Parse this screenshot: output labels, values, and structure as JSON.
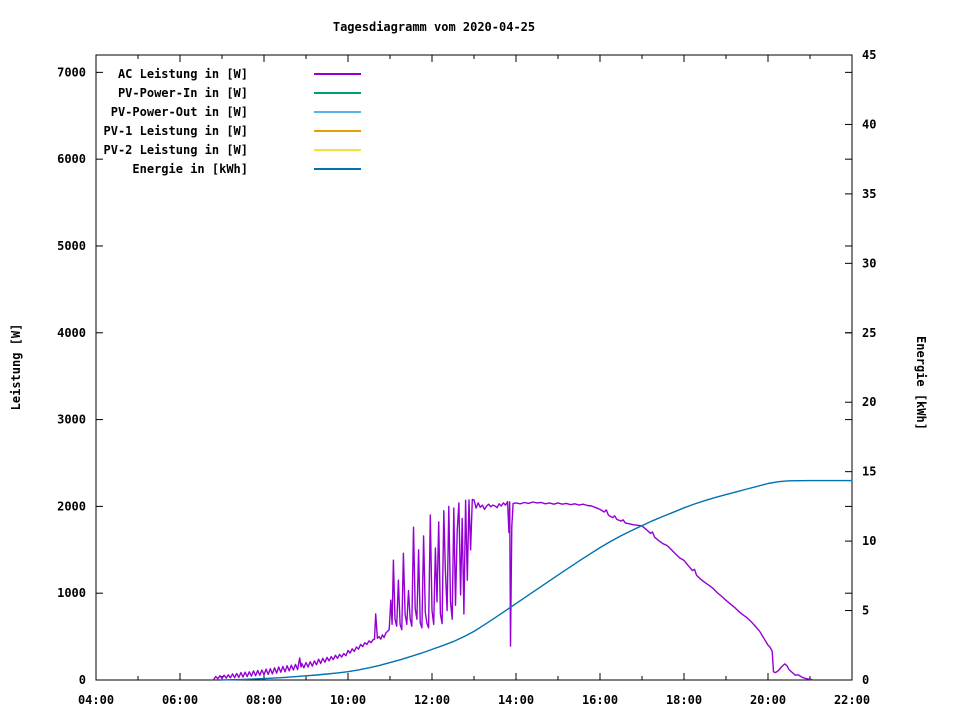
{
  "chart_data": {
    "type": "line",
    "title": "Tagesdiagramm vom 2020-04-25",
    "ylabel_left": "Leistung [W]",
    "ylabel_right": "Energie [kWh]",
    "x_range": [
      4,
      22
    ],
    "x_tick_labels": [
      "04:00",
      "06:00",
      "08:00",
      "10:00",
      "12:00",
      "14:00",
      "16:00",
      "18:00",
      "20:00",
      "22:00"
    ],
    "x_major_step_hours": 2,
    "x_minor_step_hours": 1,
    "y_left": {
      "range": [
        0,
        7200
      ],
      "ticks": [
        0,
        1000,
        2000,
        3000,
        4000,
        5000,
        6000,
        7000
      ]
    },
    "y_right": {
      "range": [
        0,
        45
      ],
      "ticks": [
        0,
        5,
        10,
        15,
        20,
        25,
        30,
        35,
        40,
        45
      ]
    },
    "grid": false,
    "legend_position": "top-left-inside",
    "background_color": "#ffffff",
    "border_color": "#000000",
    "series": [
      {
        "name": "AC Leistung in [W]",
        "color": "#9400d3",
        "axis": "left",
        "points": [
          [
            6.8,
            3
          ],
          [
            6.85,
            40
          ],
          [
            6.9,
            15
          ],
          [
            6.95,
            50
          ],
          [
            7.0,
            20
          ],
          [
            7.05,
            55
          ],
          [
            7.1,
            22
          ],
          [
            7.15,
            60
          ],
          [
            7.2,
            25
          ],
          [
            7.25,
            70
          ],
          [
            7.3,
            28
          ],
          [
            7.35,
            75
          ],
          [
            7.4,
            30
          ],
          [
            7.45,
            85
          ],
          [
            7.5,
            35
          ],
          [
            7.55,
            90
          ],
          [
            7.6,
            40
          ],
          [
            7.65,
            95
          ],
          [
            7.7,
            45
          ],
          [
            7.75,
            105
          ],
          [
            7.8,
            50
          ],
          [
            7.85,
            110
          ],
          [
            7.9,
            55
          ],
          [
            7.95,
            115
          ],
          [
            8.0,
            60
          ],
          [
            8.05,
            125
          ],
          [
            8.1,
            65
          ],
          [
            8.15,
            130
          ],
          [
            8.2,
            70
          ],
          [
            8.25,
            140
          ],
          [
            8.3,
            80
          ],
          [
            8.35,
            150
          ],
          [
            8.4,
            90
          ],
          [
            8.45,
            155
          ],
          [
            8.5,
            95
          ],
          [
            8.55,
            165
          ],
          [
            8.6,
            105
          ],
          [
            8.65,
            170
          ],
          [
            8.7,
            115
          ],
          [
            8.75,
            180
          ],
          [
            8.8,
            120
          ],
          [
            8.85,
            255
          ],
          [
            8.88,
            150
          ],
          [
            8.9,
            190
          ],
          [
            8.95,
            140
          ],
          [
            9.0,
            200
          ],
          [
            9.05,
            150
          ],
          [
            9.1,
            210
          ],
          [
            9.15,
            160
          ],
          [
            9.2,
            220
          ],
          [
            9.25,
            175
          ],
          [
            9.3,
            240
          ],
          [
            9.35,
            190
          ],
          [
            9.4,
            250
          ],
          [
            9.45,
            205
          ],
          [
            9.5,
            260
          ],
          [
            9.55,
            220
          ],
          [
            9.6,
            270
          ],
          [
            9.65,
            235
          ],
          [
            9.7,
            285
          ],
          [
            9.75,
            250
          ],
          [
            9.8,
            295
          ],
          [
            9.85,
            265
          ],
          [
            9.9,
            305
          ],
          [
            9.95,
            280
          ],
          [
            10.0,
            340
          ],
          [
            10.05,
            310
          ],
          [
            10.1,
            360
          ],
          [
            10.15,
            330
          ],
          [
            10.2,
            380
          ],
          [
            10.25,
            355
          ],
          [
            10.3,
            410
          ],
          [
            10.35,
            385
          ],
          [
            10.4,
            430
          ],
          [
            10.45,
            410
          ],
          [
            10.5,
            450
          ],
          [
            10.55,
            430
          ],
          [
            10.6,
            465
          ],
          [
            10.63,
            470
          ],
          [
            10.66,
            760
          ],
          [
            10.7,
            480
          ],
          [
            10.74,
            500
          ],
          [
            10.78,
            470
          ],
          [
            10.82,
            520
          ],
          [
            10.86,
            490
          ],
          [
            10.9,
            540
          ],
          [
            10.94,
            560
          ],
          [
            10.98,
            580
          ],
          [
            11.02,
            920
          ],
          [
            11.05,
            640
          ],
          [
            11.08,
            1380
          ],
          [
            11.12,
            700
          ],
          [
            11.16,
            620
          ],
          [
            11.2,
            1150
          ],
          [
            11.24,
            640
          ],
          [
            11.28,
            580
          ],
          [
            11.32,
            1460
          ],
          [
            11.36,
            760
          ],
          [
            11.4,
            640
          ],
          [
            11.44,
            1030
          ],
          [
            11.48,
            700
          ],
          [
            11.52,
            620
          ],
          [
            11.56,
            1760
          ],
          [
            11.6,
            820
          ],
          [
            11.64,
            700
          ],
          [
            11.68,
            1500
          ],
          [
            11.72,
            660
          ],
          [
            11.76,
            600
          ],
          [
            11.8,
            1660
          ],
          [
            11.84,
            780
          ],
          [
            11.88,
            650
          ],
          [
            11.92,
            600
          ],
          [
            11.96,
            1900
          ],
          [
            12.0,
            800
          ],
          [
            12.04,
            640
          ],
          [
            12.08,
            1520
          ],
          [
            12.12,
            900
          ],
          [
            12.16,
            1820
          ],
          [
            12.2,
            760
          ],
          [
            12.24,
            650
          ],
          [
            12.28,
            1950
          ],
          [
            12.32,
            1250
          ],
          [
            12.36,
            800
          ],
          [
            12.4,
            2000
          ],
          [
            12.44,
            900
          ],
          [
            12.48,
            700
          ],
          [
            12.52,
            1980
          ],
          [
            12.56,
            860
          ],
          [
            12.6,
            1720
          ],
          [
            12.64,
            2040
          ],
          [
            12.68,
            980
          ],
          [
            12.72,
            1860
          ],
          [
            12.76,
            760
          ],
          [
            12.8,
            2070
          ],
          [
            12.84,
            1150
          ],
          [
            12.88,
            2075
          ],
          [
            12.92,
            1500
          ],
          [
            12.96,
            2080
          ],
          [
            13.0,
            2075
          ],
          [
            13.05,
            1980
          ],
          [
            13.1,
            2040
          ],
          [
            13.15,
            1990
          ],
          [
            13.2,
            2015
          ],
          [
            13.25,
            1965
          ],
          [
            13.3,
            2005
          ],
          [
            13.35,
            2025
          ],
          [
            13.4,
            1995
          ],
          [
            13.45,
            2015
          ],
          [
            13.5,
            2005
          ],
          [
            13.55,
            1985
          ],
          [
            13.6,
            2030
          ],
          [
            13.65,
            2005
          ],
          [
            13.7,
            2040
          ],
          [
            13.75,
            2015
          ],
          [
            13.8,
            2055
          ],
          [
            13.83,
            1700
          ],
          [
            13.85,
            2050
          ],
          [
            13.87,
            390
          ],
          [
            13.9,
            1770
          ],
          [
            13.93,
            2035
          ],
          [
            14.0,
            2040
          ],
          [
            14.1,
            2030
          ],
          [
            14.2,
            2045
          ],
          [
            14.3,
            2035
          ],
          [
            14.4,
            2050
          ],
          [
            14.5,
            2040
          ],
          [
            14.6,
            2045
          ],
          [
            14.7,
            2030
          ],
          [
            14.8,
            2040
          ],
          [
            14.9,
            2025
          ],
          [
            15.0,
            2040
          ],
          [
            15.1,
            2025
          ],
          [
            15.2,
            2035
          ],
          [
            15.3,
            2020
          ],
          [
            15.4,
            2030
          ],
          [
            15.5,
            2015
          ],
          [
            15.6,
            2025
          ],
          [
            15.7,
            2010
          ],
          [
            15.8,
            2005
          ],
          [
            15.9,
            1985
          ],
          [
            16.0,
            1965
          ],
          [
            16.1,
            1935
          ],
          [
            16.15,
            1960
          ],
          [
            16.2,
            1900
          ],
          [
            16.3,
            1870
          ],
          [
            16.35,
            1890
          ],
          [
            16.4,
            1850
          ],
          [
            16.5,
            1830
          ],
          [
            16.55,
            1845
          ],
          [
            16.6,
            1810
          ],
          [
            16.7,
            1800
          ],
          [
            16.8,
            1788
          ],
          [
            16.9,
            1782
          ],
          [
            17.0,
            1775
          ],
          [
            17.1,
            1735
          ],
          [
            17.2,
            1690
          ],
          [
            17.25,
            1705
          ],
          [
            17.3,
            1645
          ],
          [
            17.4,
            1605
          ],
          [
            17.5,
            1570
          ],
          [
            17.6,
            1548
          ],
          [
            17.7,
            1500
          ],
          [
            17.8,
            1452
          ],
          [
            17.9,
            1405
          ],
          [
            18.0,
            1378
          ],
          [
            18.1,
            1318
          ],
          [
            18.2,
            1262
          ],
          [
            18.25,
            1275
          ],
          [
            18.3,
            1205
          ],
          [
            18.4,
            1160
          ],
          [
            18.5,
            1122
          ],
          [
            18.6,
            1090
          ],
          [
            18.7,
            1052
          ],
          [
            18.8,
            1002
          ],
          [
            18.9,
            962
          ],
          [
            19.0,
            918
          ],
          [
            19.1,
            878
          ],
          [
            19.2,
            838
          ],
          [
            19.3,
            792
          ],
          [
            19.4,
            752
          ],
          [
            19.5,
            718
          ],
          [
            19.6,
            672
          ],
          [
            19.7,
            618
          ],
          [
            19.8,
            562
          ],
          [
            19.9,
            482
          ],
          [
            20.0,
            402
          ],
          [
            20.05,
            378
          ],
          [
            20.1,
            330
          ],
          [
            20.13,
            95
          ],
          [
            20.18,
            85
          ],
          [
            20.25,
            110
          ],
          [
            20.32,
            150
          ],
          [
            20.4,
            185
          ],
          [
            20.45,
            165
          ],
          [
            20.5,
            120
          ],
          [
            20.58,
            85
          ],
          [
            20.65,
            55
          ],
          [
            20.72,
            60
          ],
          [
            20.8,
            35
          ],
          [
            20.88,
            20
          ],
          [
            20.95,
            12
          ],
          [
            21.05,
            5
          ]
        ]
      },
      {
        "name": "PV-Power-In in [W]",
        "color": "#009e73",
        "axis": "left",
        "points": []
      },
      {
        "name": "PV-Power-Out in [W]",
        "color": "#56b4e9",
        "axis": "left",
        "points": []
      },
      {
        "name": "PV-1 Leistung in [W]",
        "color": "#e69f00",
        "axis": "left",
        "points": []
      },
      {
        "name": "PV-2 Leistung in [W]",
        "color": "#f0e442",
        "axis": "left",
        "points": []
      },
      {
        "name": "Energie in [kWh]",
        "color": "#0072b2",
        "axis": "right",
        "points": [
          [
            7.0,
            0.01
          ],
          [
            7.5,
            0.04
          ],
          [
            8.0,
            0.1
          ],
          [
            8.5,
            0.19
          ],
          [
            9.0,
            0.3
          ],
          [
            9.25,
            0.36
          ],
          [
            9.5,
            0.43
          ],
          [
            9.75,
            0.51
          ],
          [
            10.0,
            0.6
          ],
          [
            10.25,
            0.73
          ],
          [
            10.5,
            0.88
          ],
          [
            10.75,
            1.05
          ],
          [
            11.0,
            1.25
          ],
          [
            11.25,
            1.46
          ],
          [
            11.5,
            1.7
          ],
          [
            11.75,
            1.94
          ],
          [
            12.0,
            2.2
          ],
          [
            12.25,
            2.47
          ],
          [
            12.5,
            2.76
          ],
          [
            12.75,
            3.1
          ],
          [
            13.0,
            3.5
          ],
          [
            13.25,
            3.98
          ],
          [
            13.5,
            4.48
          ],
          [
            13.75,
            4.99
          ],
          [
            14.0,
            5.5
          ],
          [
            14.25,
            6.02
          ],
          [
            14.5,
            6.53
          ],
          [
            14.75,
            7.04
          ],
          [
            15.0,
            7.55
          ],
          [
            15.25,
            8.06
          ],
          [
            15.5,
            8.56
          ],
          [
            15.75,
            9.05
          ],
          [
            16.0,
            9.53
          ],
          [
            16.25,
            9.97
          ],
          [
            16.5,
            10.38
          ],
          [
            16.75,
            10.76
          ],
          [
            17.0,
            11.12
          ],
          [
            17.25,
            11.46
          ],
          [
            17.5,
            11.78
          ],
          [
            17.75,
            12.08
          ],
          [
            18.0,
            12.4
          ],
          [
            18.25,
            12.67
          ],
          [
            18.5,
            12.92
          ],
          [
            18.75,
            13.15
          ],
          [
            19.0,
            13.35
          ],
          [
            19.25,
            13.55
          ],
          [
            19.5,
            13.75
          ],
          [
            19.75,
            13.95
          ],
          [
            20.0,
            14.15
          ],
          [
            20.25,
            14.28
          ],
          [
            20.5,
            14.34
          ],
          [
            21.0,
            14.36
          ],
          [
            21.5,
            14.36
          ],
          [
            22.0,
            14.36
          ]
        ]
      }
    ]
  }
}
